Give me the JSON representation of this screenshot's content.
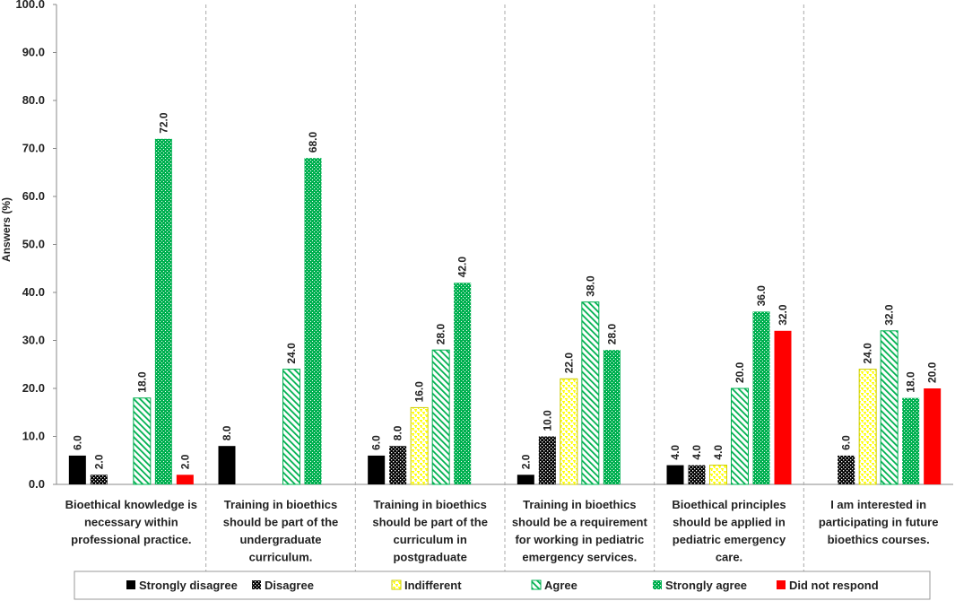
{
  "chart_data": {
    "type": "bar",
    "ylabel": "Answers  (%)",
    "ylim": [
      0,
      100
    ],
    "ytick_step": 10,
    "ytick_labels": [
      "0.0",
      "10.0",
      "20.0",
      "30.0",
      "40.0",
      "50.0",
      "60.0",
      "70.0",
      "80.0",
      "90.0",
      "100.0"
    ],
    "grid": false,
    "group_separators": true,
    "legend_position": "bottom",
    "categories": [
      [
        "Bioethical knowledge is",
        "necessary within",
        "professional practice."
      ],
      [
        "Training in bioethics",
        "should be part of the",
        "undergraduate",
        "curriculum."
      ],
      [
        "Training in bioethics",
        "should be part of the",
        "curriculum in",
        "postgraduate"
      ],
      [
        "Training in bioethics",
        "should be a requirement",
        "for working in pediatric",
        "emergency services."
      ],
      [
        "Bioethical principles",
        "should be applied in",
        "pediatric emergency",
        "care."
      ],
      [
        "I am interested in",
        "participating in future",
        "bioethics courses."
      ]
    ],
    "series": [
      {
        "name": "Strongly disagree",
        "color": "#000000",
        "pattern": "solid",
        "values": [
          6.0,
          8.0,
          6.0,
          2.0,
          4.0,
          null
        ]
      },
      {
        "name": "Disagree",
        "color": "#000000",
        "pattern": "dots",
        "values": [
          2.0,
          null,
          8.0,
          10.0,
          4.0,
          6.0
        ]
      },
      {
        "name": "Indifferent",
        "color": "#ffff00",
        "pattern": "dashes",
        "values": [
          null,
          null,
          16.0,
          22.0,
          4.0,
          24.0
        ]
      },
      {
        "name": "Agree",
        "color": "#00b050",
        "pattern": "diagonal",
        "values": [
          18.0,
          24.0,
          28.0,
          38.0,
          20.0,
          32.0
        ]
      },
      {
        "name": "Strongly agree",
        "color": "#00b050",
        "pattern": "dots-on-green",
        "values": [
          72.0,
          68.0,
          42.0,
          28.0,
          36.0,
          18.0
        ]
      },
      {
        "name": "Did not respond",
        "color": "#ff0000",
        "pattern": "solid",
        "values": [
          2.0,
          null,
          null,
          null,
          32.0,
          20.0
        ]
      }
    ],
    "value_label_format": "one_decimal"
  }
}
